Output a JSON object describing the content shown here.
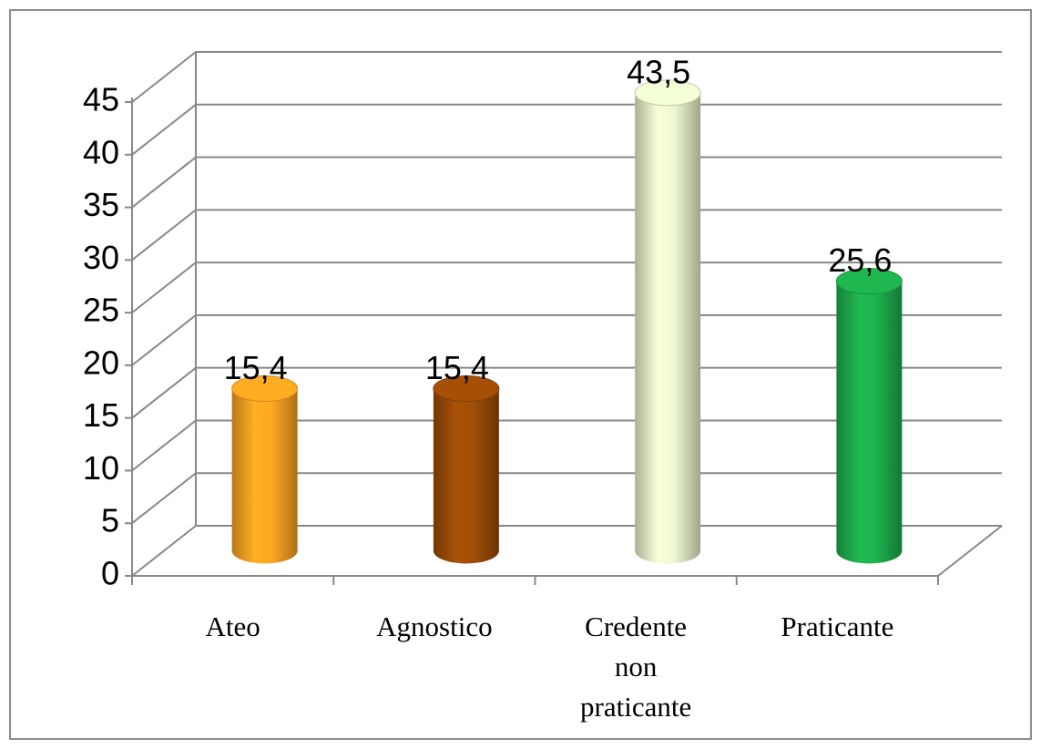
{
  "chart_data": {
    "type": "bar3d",
    "categories": [
      "Ateo",
      "Agnostico",
      "Credente non praticante",
      "Praticante"
    ],
    "values": [
      15.4,
      15.4,
      43.5,
      25.6
    ],
    "value_labels": [
      "15,4",
      "15,4",
      "43,5",
      "25,6"
    ],
    "colors": [
      "#f7a020",
      "#9a4a06",
      "#e3ecc7",
      "#1daa4a"
    ],
    "ylim": [
      0,
      45
    ],
    "yticks": [
      0,
      5,
      10,
      15,
      20,
      25,
      30,
      35,
      40,
      45
    ],
    "grid": true
  }
}
